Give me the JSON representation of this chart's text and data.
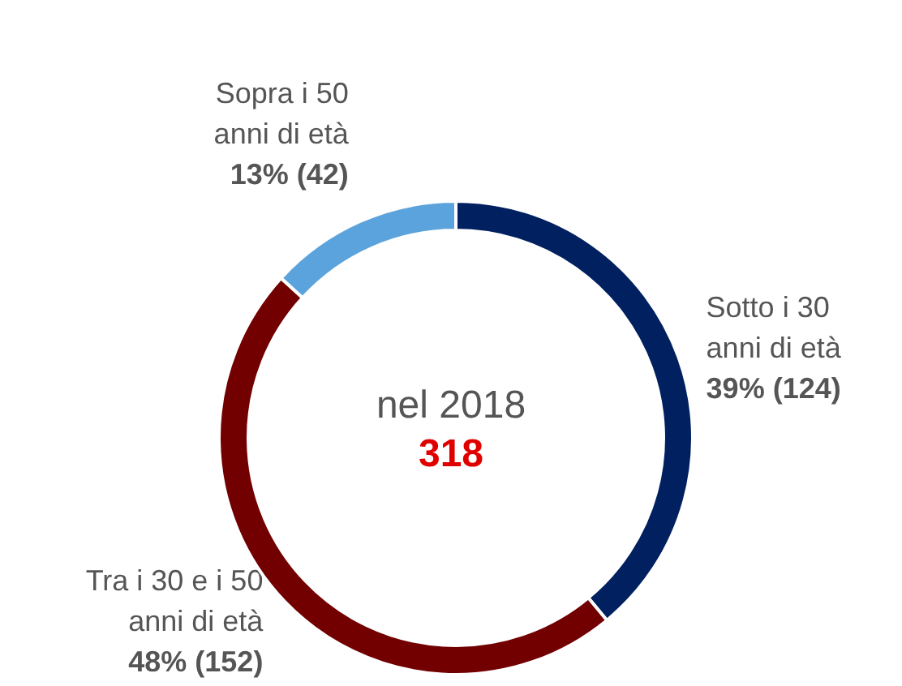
{
  "chart_data": {
    "type": "donut",
    "categories": [
      "Sotto i 30\nanni di età",
      "Tra i 30 e i 50\nanni di età",
      "Sopra i 50\nanni di età"
    ],
    "values": [
      124,
      152,
      42
    ],
    "value_labels": [
      "39% (124)",
      "48% (152)",
      "13% (42)"
    ],
    "colors": [
      "#002060",
      "#720000",
      "#5ba3dc"
    ],
    "annotations": [
      "nel 2018",
      "318"
    ],
    "legend": false
  }
}
